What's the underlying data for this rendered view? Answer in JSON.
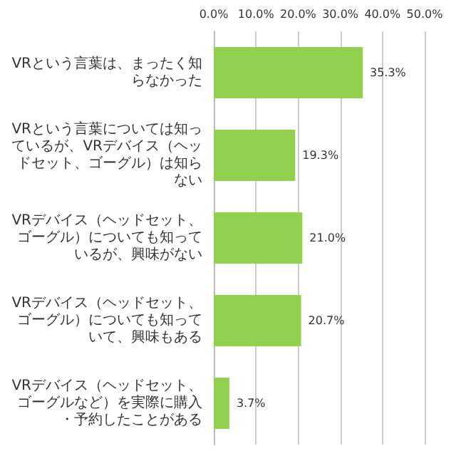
{
  "chart_data": {
    "type": "bar",
    "orientation": "horizontal",
    "categories": [
      "VRという言葉は、まったく知らなかった",
      "VRという言葉については知っているが、VRデバイス（ヘッドセット、ゴーグル）は知らない",
      "VRデバイス（ヘッドセット、ゴーグル）についても知っているが、興味がない",
      "VRデバイス（ヘッドセット、ゴーグル）についても知っていて、興味もある",
      "VRデバイス（ヘッドセット、ゴーグルなど）を実際に購入・予約したことがある"
    ],
    "values": [
      35.3,
      19.3,
      21.0,
      20.7,
      3.7
    ],
    "value_labels": [
      "35.3%",
      "19.3%",
      "21.0%",
      "20.7%",
      "3.7%"
    ],
    "color": "#92d050",
    "xlim": [
      0,
      50
    ],
    "xticks": [
      {
        "value": 0,
        "label": "0.0%"
      },
      {
        "value": 10,
        "label": "10.0%"
      },
      {
        "value": 20,
        "label": "20.0%"
      },
      {
        "value": 30,
        "label": "30.0%"
      },
      {
        "value": 40,
        "label": "40.0%"
      },
      {
        "value": 50,
        "label": "50.0%"
      }
    ],
    "grid": "x"
  }
}
